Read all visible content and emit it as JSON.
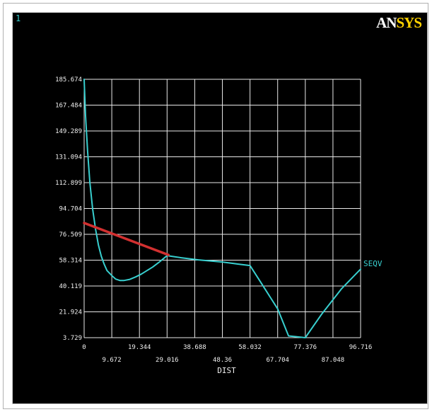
{
  "window": {
    "number": "1",
    "logo_a": "AN",
    "logo_b": "SYS"
  },
  "colors": {
    "background": "#000000",
    "grid": "#e8e8e8",
    "series": "#38cfcf",
    "overlay": "#d23030",
    "text": "#f0f0f0"
  },
  "chart_data": {
    "type": "line",
    "title": "",
    "xlabel": "DIST",
    "ylabel": "",
    "xlim": [
      0,
      96.716
    ],
    "ylim": [
      3.729,
      185.674
    ],
    "grid": true,
    "x_ticks_upper": [
      "0",
      "19.344",
      "38.688",
      "58.032",
      "77.376",
      "96.716"
    ],
    "x_ticks_lower": [
      "9.672",
      "29.016",
      "48.36",
      "67.704",
      "87.048"
    ],
    "x_tick_values_upper": [
      0,
      19.344,
      38.688,
      58.032,
      77.376,
      96.716
    ],
    "x_tick_values_lower": [
      9.672,
      29.016,
      48.36,
      67.704,
      87.048
    ],
    "y_ticks": [
      "3.729",
      "21.924",
      "40.119",
      "58.314",
      "76.509",
      "94.704",
      "112.899",
      "131.094",
      "149.289",
      "167.484",
      "185.674"
    ],
    "y_tick_values": [
      3.729,
      21.924,
      40.119,
      58.314,
      76.509,
      94.704,
      112.899,
      131.094,
      149.289,
      167.484,
      185.674
    ],
    "series": [
      {
        "name": "SEQV",
        "color": "#38cfcf",
        "x": [
          0,
          0.5,
          1.2,
          2,
          3,
          4,
          5,
          6,
          7,
          8,
          9.672,
          11,
          12.5,
          14,
          16,
          18,
          20,
          22,
          24,
          26,
          27.5,
          29.016,
          34,
          40,
          48.36,
          54,
          58.032,
          62,
          67.704,
          71.5,
          77.376,
          83,
          90,
          96.716
        ],
        "y": [
          185.674,
          160,
          135,
          113,
          94,
          80,
          69,
          61,
          55.5,
          51,
          47.5,
          45,
          44,
          44,
          44.8,
          46.5,
          48.5,
          51,
          53.5,
          56.5,
          59,
          61.5,
          60,
          58.5,
          57,
          55.5,
          54.5,
          42,
          24,
          5,
          3.729,
          20,
          38,
          52
        ]
      },
      {
        "name": "",
        "color": "#d23030",
        "x": [
          0,
          29.5
        ],
        "y": [
          84.5,
          62.0
        ]
      }
    ]
  }
}
